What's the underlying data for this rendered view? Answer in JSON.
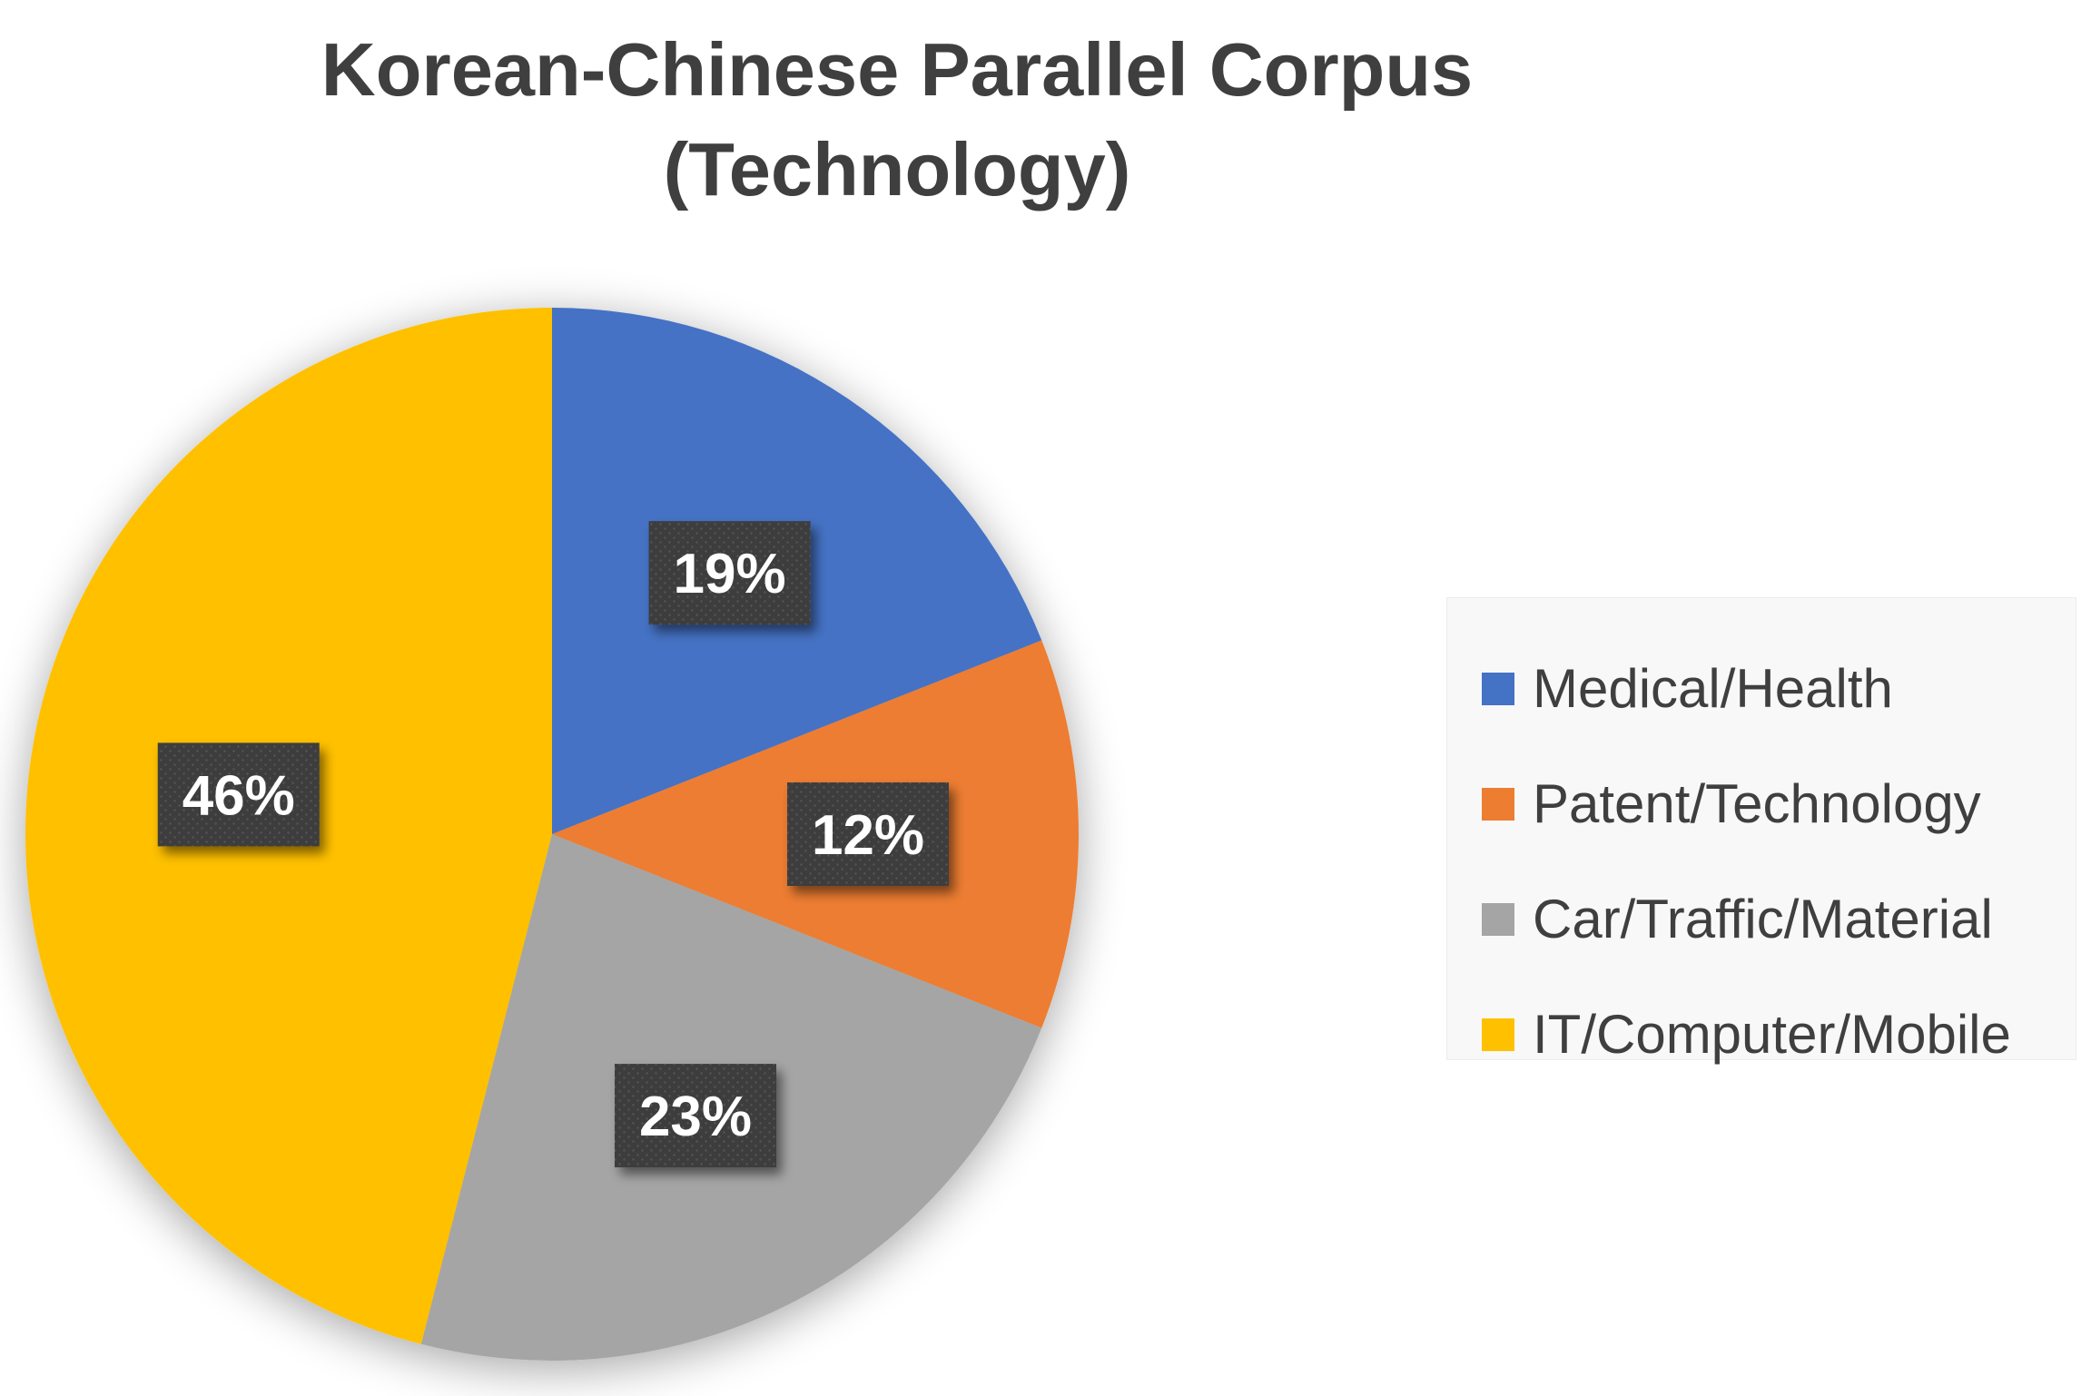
{
  "chart_data": {
    "type": "pie",
    "title": [
      "Korean-Chinese Parallel Corpus",
      "(Technology)"
    ],
    "categories": [
      "Medical/Health",
      "Patent/Technology",
      "Car/Traffic/Material",
      "IT/Computer/Mobile"
    ],
    "values": [
      19,
      12,
      23,
      46
    ],
    "data_labels": [
      "19%",
      "12%",
      "23%",
      "46%"
    ],
    "colors": [
      "#4472C4",
      "#ED7D31",
      "#A5A5A5",
      "#FFC000"
    ],
    "legend_position": "right"
  }
}
